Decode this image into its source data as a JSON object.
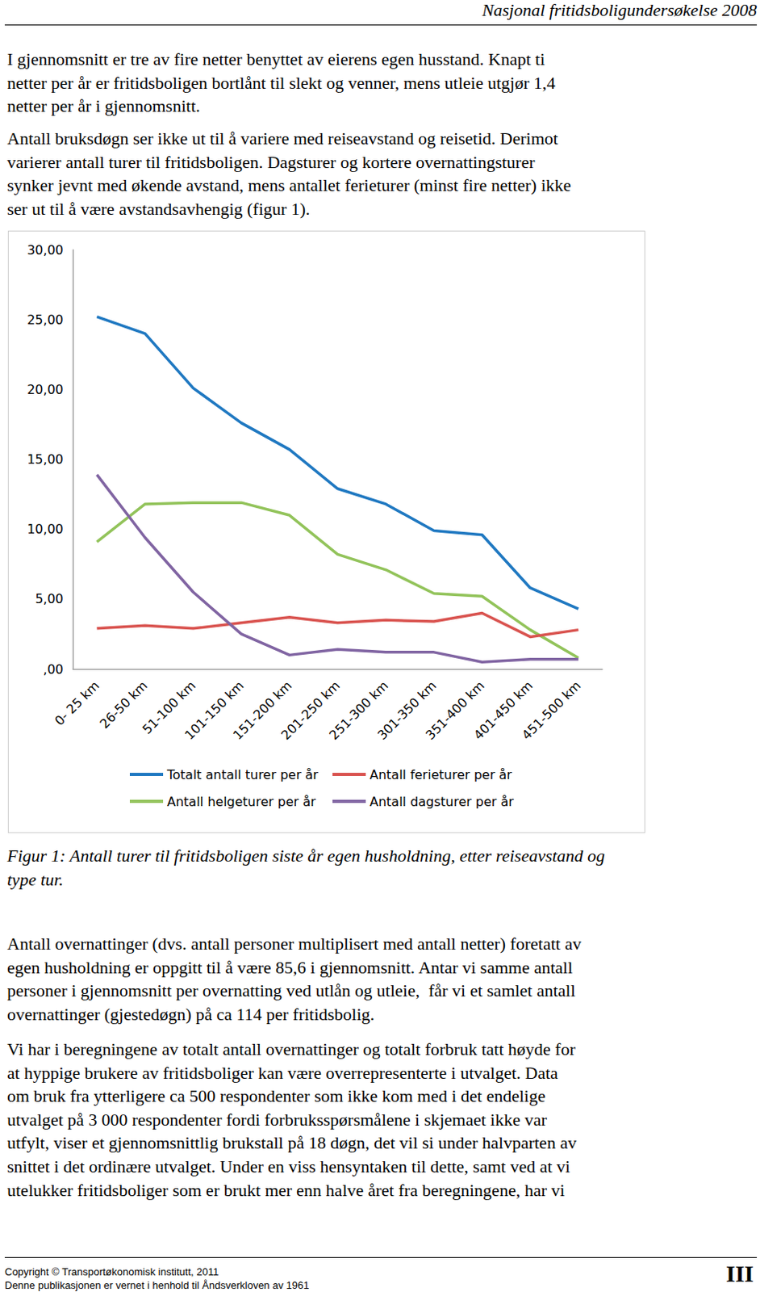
{
  "header": {
    "title": "Nasjonal fritidsboligundersøkelse 2008"
  },
  "paragraphs_before": [
    [
      "I gjennomsnitt er tre av fire netter benyttet av eierens egen husstand. Knapt ti",
      "netter per år er fritidsboligen bortlånt til slekt og venner, mens utleie utgjør 1,4",
      "netter per år i gjennomsnitt."
    ],
    [
      "Antall bruksdøgn ser ikke ut til å variere med reiseavstand og reisetid. Derimot",
      "varierer antall turer til fritidsboligen. Dagsturer og kortere overnattingsturer",
      "synker jevnt med økende avstand, mens antallet ferieturer (minst fire netter) ikke",
      "ser ut til å være avstandsavhengig (figur 1)."
    ]
  ],
  "chart_data": {
    "type": "line",
    "categories": [
      "0- 25 km",
      "26-50 km",
      "51-100 km",
      "101-150 km",
      "151-200 km",
      "201-250 km",
      "251-300 km",
      "301-350 km",
      "351-400 km",
      "401-450 km",
      "451-500 km"
    ],
    "series": [
      {
        "name": "Totalt antall turer per år",
        "color": "#1f78c1",
        "values": [
          25.2,
          24.0,
          20.1,
          17.6,
          15.7,
          12.9,
          11.8,
          9.9,
          9.6,
          5.8,
          4.3
        ]
      },
      {
        "name": "Antall helgeturer per år",
        "color": "#92c35a",
        "values": [
          9.1,
          11.8,
          11.9,
          11.9,
          11.0,
          8.2,
          7.1,
          5.4,
          5.2,
          2.8,
          0.8
        ]
      },
      {
        "name": "Antall ferieturer per år",
        "color": "#d9534f",
        "values": [
          2.9,
          3.1,
          2.9,
          3.3,
          3.7,
          3.3,
          3.5,
          3.4,
          4.0,
          2.3,
          2.8
        ]
      },
      {
        "name": "Antall dagsturer per år",
        "color": "#8064a2",
        "values": [
          13.9,
          9.4,
          5.5,
          2.5,
          1.0,
          1.4,
          1.2,
          1.2,
          0.5,
          0.7,
          0.7
        ]
      }
    ],
    "ylim": [
      0,
      30
    ],
    "yticks": [
      {
        "value": 0,
        "label": ",00"
      },
      {
        "value": 5,
        "label": "5,00"
      },
      {
        "value": 10,
        "label": "10,00"
      },
      {
        "value": 15,
        "label": "15,00"
      },
      {
        "value": 20,
        "label": "20,00"
      },
      {
        "value": 25,
        "label": "25,00"
      },
      {
        "value": 30,
        "label": "30,00"
      }
    ],
    "grid": false,
    "legend": "bottom"
  },
  "caption": [
    "Figur 1: Antall turer til fritidsboligen siste år egen husholdning, etter reiseavstand og",
    "type tur."
  ],
  "paragraphs_after": [
    [
      "Antall overnattinger (dvs. antall personer multiplisert med antall netter) foretatt av",
      "egen husholdning er oppgitt til å være 85,6 i gjennomsnitt. Antar vi samme antall",
      "personer i gjennomsnitt per overnatting ved utlån og utleie,  får vi et samlet antall",
      "overnattinger (gjestedøgn) på ca 114 per fritidsbolig."
    ],
    [
      "Vi har i beregningene av totalt antall overnattinger og totalt forbruk tatt høyde for",
      "at hyppige brukere av fritidsboliger kan være overrepresenterte i utvalget. Data",
      "om bruk fra ytterligere ca 500 respondenter som ikke kom med i det endelige",
      "utvalget på 3 000 respondenter fordi forbruksspørsmålene i skjemaet ikke var",
      "utfylt, viser et gjennomsnittlig brukstall på 18 døgn, det vil si under halvparten av",
      "snittet i det ordinære utvalget. Under en viss hensyntaken til dette, samt ved at vi",
      "utelukker fritidsboliger som er brukt mer enn halve året fra beregningene, har vi"
    ]
  ],
  "footer": {
    "copyright": "Copyright © Transportøkonomisk institutt, 2011",
    "notice": "Denne publikasjonen er vernet i henhold til Åndsverkloven av 1961",
    "page": "III"
  }
}
